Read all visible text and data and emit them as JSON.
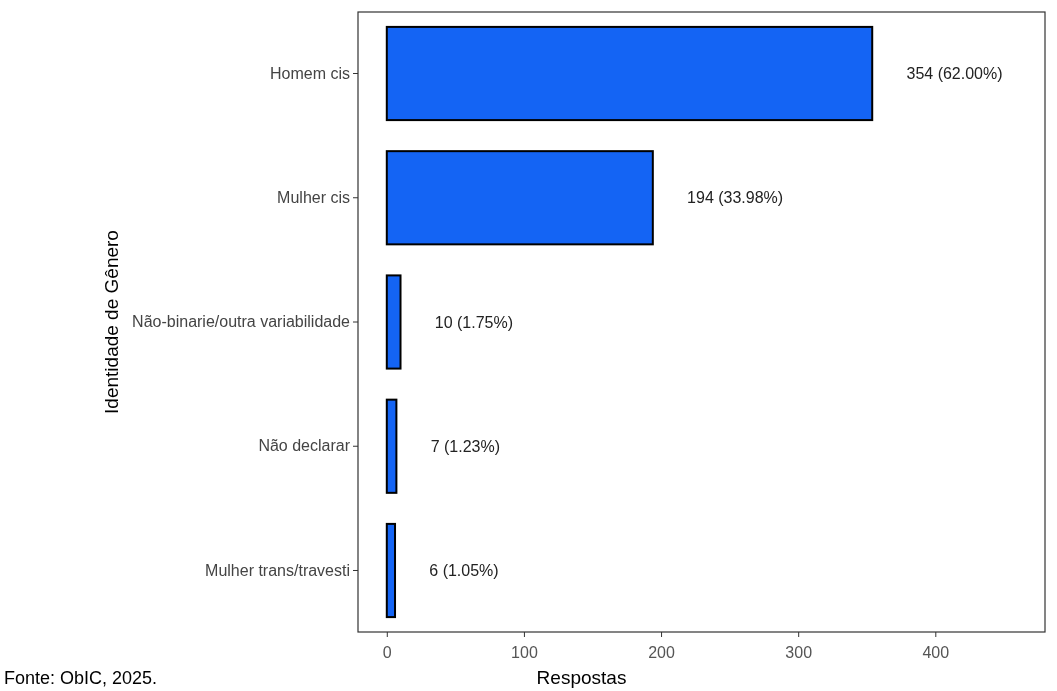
{
  "chart_data": {
    "type": "bar",
    "orientation": "horizontal",
    "xlabel": "Respostas",
    "ylabel": "Identidade de Gênero",
    "categories": [
      "Homem cis",
      "Mulher cis",
      "Não-binarie/outra variabilidade",
      "Não declarar",
      "Mulher trans/travesti"
    ],
    "values": [
      354,
      194,
      10,
      7,
      6
    ],
    "color": "#1464f4",
    "value_labels": [
      "354 (62.00%)",
      "194 (33.98%)",
      "10 (1.75%)",
      "7 (1.23%)",
      "6 (1.05%)"
    ],
    "xlim": [
      -21,
      480
    ],
    "xticks": [
      0,
      100,
      200,
      300,
      400
    ],
    "grid": false,
    "annotations": [
      "Fonte: ObIC, 2025."
    ]
  }
}
